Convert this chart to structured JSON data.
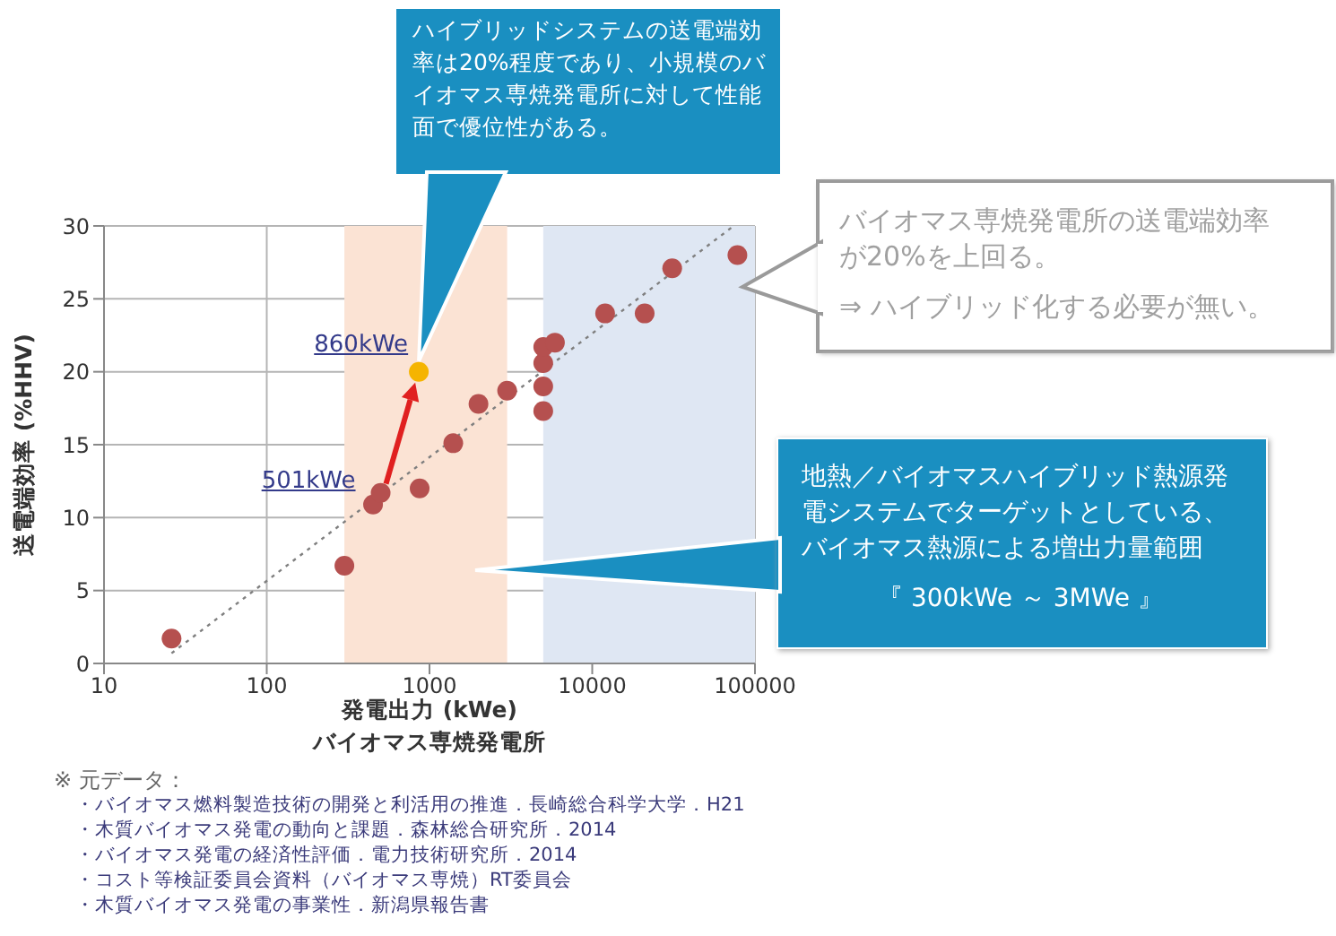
{
  "chart_data": {
    "type": "scatter",
    "xlabel": "発電出力 (kWe)\nバイオマス専焼発電所",
    "ylabel": "送電端効率 (%HHV)",
    "log": "x",
    "xlim": [
      10,
      100000
    ],
    "xticks": [
      10,
      100,
      1000,
      10000,
      100000
    ],
    "ylim": [
      0,
      30
    ],
    "yticks": [
      0,
      5,
      10,
      15,
      20,
      25,
      30
    ],
    "grid": true,
    "legend": false,
    "series": [
      {
        "color": "#b5504f",
        "marker": "circle",
        "x": [
          26,
          300,
          450,
          501,
          870,
          1400,
          2000,
          3000,
          5000,
          5000,
          5000,
          5000,
          5900,
          12000,
          21000,
          31000,
          78000
        ],
        "values": [
          1.7,
          6.7,
          10.9,
          11.7,
          12.0,
          15.1,
          17.8,
          18.7,
          19.0,
          17.3,
          20.6,
          21.7,
          22.0,
          24.0,
          24.0,
          27.1,
          28.0
        ]
      },
      {
        "color": "#f5b400",
        "marker": "circle",
        "x": [
          860
        ],
        "values": [
          20
        ]
      },
      {
        "type": "line",
        "color": "#7f7f7f",
        "marker": "none",
        "line_style": "dotted",
        "x": [
          26,
          74000
        ],
        "values": [
          0.7,
          30
        ]
      }
    ],
    "bands": [
      {
        "axis": "x",
        "from": 300,
        "to": 3000,
        "color": "#fbe3d4"
      },
      {
        "axis": "x",
        "from": 5000,
        "to": 100000,
        "color": "#dfe7f3"
      }
    ],
    "annotations": [
      {
        "text": "860kWe",
        "x": 860,
        "y": 20
      },
      {
        "text": "501kWe",
        "x": 501,
        "y": 11.7
      },
      "ハイブリッドシステムの送電端効率は20%程度であり、小規模のバイオマス専焼発電所に対して性能面で優位性がある。",
      "地熱／バイオマスハイブリッド熱源発電システムでターゲットとしている、バイオマス熱源による増出力量範囲",
      "バイオマス専焼発電所の送電端効率が20%を上回る。",
      "『 300kWe ～ 3MWe 』",
      "⇒ ハイブリッド化する必要が無い。",
      "※ 元データ：",
      "・バイオマス燃料製造技術の開発と利活用の推進．長崎総合科学大学．H21",
      "・木質バイオマス発電の動向と課題．森林総合研究所．2014",
      "・バイオマス発電の経済性評価．電力技術研究所．2014",
      "・コスト等検証委員会資料（バイオマス専焼）RT委員会",
      "・木質バイオマス発電の事業性．新潟県報告書"
    ]
  }
}
